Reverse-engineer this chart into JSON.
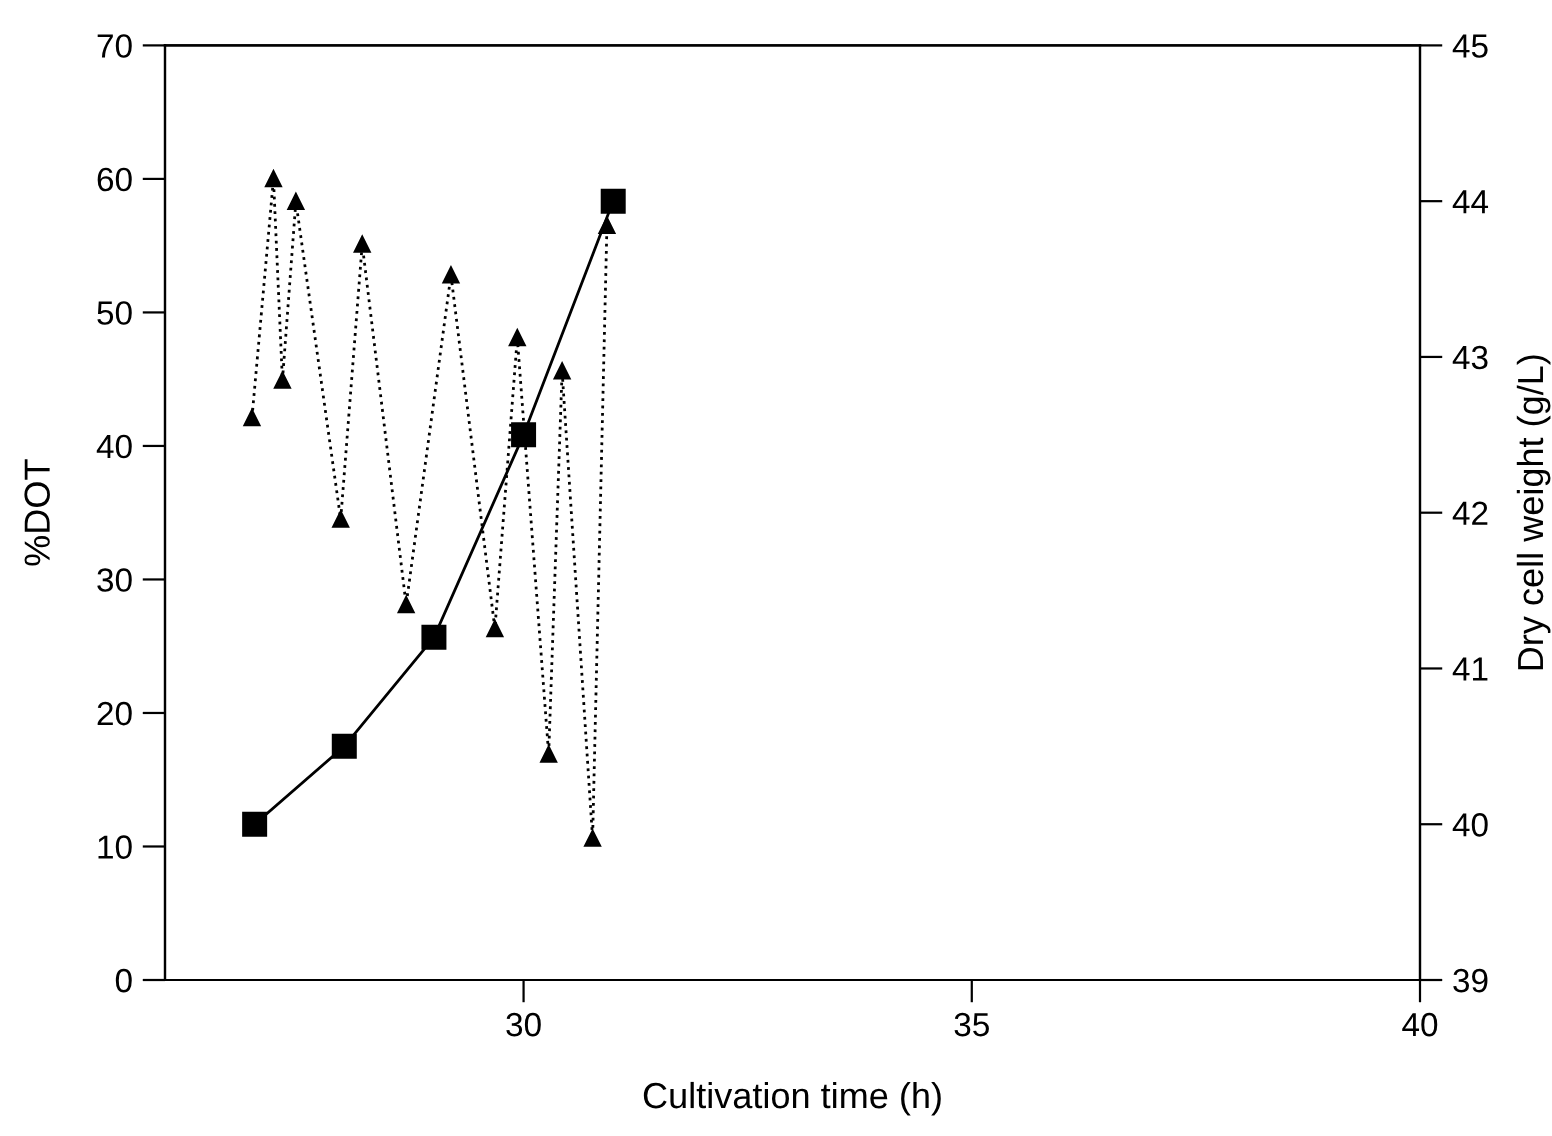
{
  "chart_data": {
    "type": "line",
    "xlabel": "Cultivation time (h)",
    "ylabel": "%DOT",
    "y2label": "Dry cell weight (g/L)",
    "xlim": [
      26,
      40
    ],
    "xticks": [
      30,
      35,
      40
    ],
    "ylim": [
      0,
      70
    ],
    "yticks": [
      0,
      10,
      20,
      30,
      40,
      50,
      60,
      70
    ],
    "y2lim": [
      39,
      45
    ],
    "y2ticks": [
      39,
      40,
      41,
      42,
      43,
      44,
      45
    ],
    "grid": false,
    "series": [
      {
        "color": "#000000",
        "marker": "triangle",
        "line_style": "dotted",
        "x": [
          26.97,
          27.21,
          27.31,
          27.46,
          27.96,
          28.2,
          28.69,
          29.19,
          29.68,
          29.93,
          30.28,
          30.43,
          30.77,
          30.93
        ],
        "values": [
          42.1,
          60.0,
          44.9,
          58.3,
          34.5,
          55.1,
          28.1,
          52.8,
          26.3,
          48.1,
          16.9,
          45.6,
          10.6,
          56.5
        ]
      },
      {
        "color": "#000000",
        "marker": "square",
        "line_style": "solid",
        "axis": "y2",
        "x": [
          27,
          28,
          29,
          30,
          31
        ],
        "values": [
          40.0,
          40.5,
          41.2,
          42.5,
          44.0
        ]
      }
    ]
  }
}
